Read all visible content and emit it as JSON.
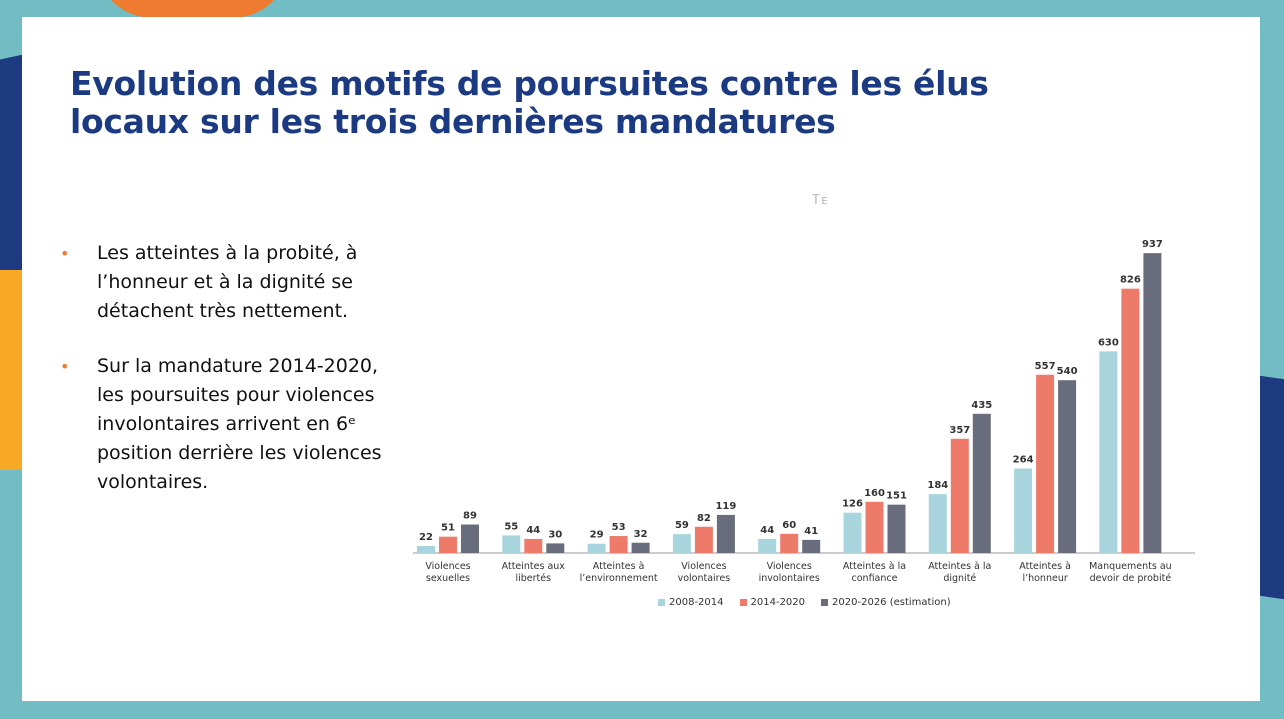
{
  "title_line1": "Evolution des  motifs de poursuites contre  les élus",
  "title_line2": "locaux sur les trois dernières mandatures",
  "watermark": "Tᴇ",
  "bullets": [
    {
      "marker": "•",
      "text": "Les atteintes à la probité, à l’honneur et à la dignité se détachent très nettement."
    },
    {
      "marker": "•",
      "text": "Sur la mandature 2014-2020, les poursuites pour  violences involontaires arrivent en 6ᵉ position derrière les violences volontaires."
    }
  ],
  "colors": {
    "series1": "#A8D5DD",
    "series2": "#EE7B6A",
    "series3": "#686C7C",
    "title": "#1B3A82",
    "bullet": "#EE7B30"
  },
  "chart_data": {
    "type": "bar",
    "title": "",
    "xlabel": "",
    "ylabel": "",
    "ylim": [
      0,
      1000
    ],
    "grid": false,
    "legend_position": "bottom",
    "categories": [
      [
        "Violences",
        "sexuelles"
      ],
      [
        "Atteintes aux",
        "libertés"
      ],
      [
        "Atteintes à",
        "l’environnement"
      ],
      [
        "Violences",
        "volontaires"
      ],
      [
        "Violences",
        "involontaires"
      ],
      [
        "Atteintes à la",
        "confiance"
      ],
      [
        "Atteintes à la",
        "dignité"
      ],
      [
        "Atteintes à",
        "l’honneur"
      ],
      [
        "Manquements au",
        "devoir de probité"
      ]
    ],
    "series": [
      {
        "name": "2008-2014",
        "values": [
          22,
          55,
          29,
          59,
          44,
          126,
          184,
          264,
          630
        ]
      },
      {
        "name": "2014-2020",
        "values": [
          51,
          44,
          53,
          82,
          60,
          160,
          357,
          557,
          826
        ]
      },
      {
        "name": "2020-2026 (estimation)",
        "values": [
          89,
          30,
          32,
          119,
          41,
          151,
          435,
          540,
          937
        ]
      }
    ]
  }
}
